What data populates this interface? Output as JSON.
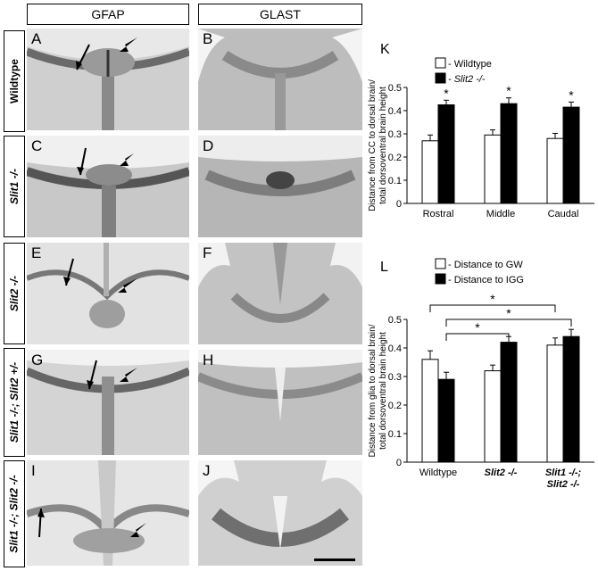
{
  "columns": [
    "GFAP",
    "GLAST"
  ],
  "rows": [
    {
      "label": "Wildtype",
      "left_letter": "A",
      "right_letter": "B"
    },
    {
      "label": "Slit1 -/-",
      "left_letter": "C",
      "right_letter": "D"
    },
    {
      "label": "Slit2 -/-",
      "left_letter": "E",
      "right_letter": "F"
    },
    {
      "label": "Slit1 -/-; Slit2 +/-",
      "left_letter": "G",
      "right_letter": "H"
    },
    {
      "label": "Slit1 -/-; Slit2 -/-",
      "left_letter": "I",
      "right_letter": "J"
    }
  ],
  "chart_data": [
    {
      "panel_letter": "K",
      "type": "bar",
      "categories": [
        "Rostral",
        "Middle",
        "Caudal"
      ],
      "series": [
        {
          "name": "- Wildtype",
          "values": [
            0.27,
            0.295,
            0.28
          ],
          "errors": [
            0.025,
            0.022,
            0.022
          ],
          "color": "#ffffff"
        },
        {
          "name": "- Slit2 -/-",
          "values": [
            0.425,
            0.43,
            0.415
          ],
          "errors": [
            0.02,
            0.025,
            0.022
          ],
          "color": "#000000"
        }
      ],
      "significance": [
        "*",
        "*",
        "*"
      ],
      "ylabel_lines": [
        "Distance from CC to dorsal brain/",
        "total dorsoventral brain height"
      ],
      "ylim": [
        0,
        0.5
      ],
      "yticks": [
        "0",
        "0.1",
        "0.2",
        "0.3",
        "0.4",
        "0.5"
      ]
    },
    {
      "panel_letter": "L",
      "type": "bar",
      "categories": [
        "Wildtype",
        "Slit2 -/-",
        "Slit1 -/-; Slit2 -/-"
      ],
      "series": [
        {
          "name": "- Distance to GW",
          "values": [
            0.36,
            0.32,
            0.41
          ],
          "errors": [
            0.03,
            0.02,
            0.025
          ],
          "color": "#ffffff"
        },
        {
          "name": "- Distance to IGG",
          "values": [
            0.29,
            0.42,
            0.44
          ],
          "errors": [
            0.025,
            0.02,
            0.025
          ],
          "color": "#000000"
        }
      ],
      "significance": [
        "*",
        "*",
        "*"
      ],
      "ylabel_lines": [
        "Distance from glia to dorsal brain/",
        "total dorsoventral brain height"
      ],
      "ylim": [
        0,
        0.5
      ],
      "yticks": [
        "0",
        "0.1",
        "0.2",
        "0.3",
        "0.4",
        "0.5"
      ]
    }
  ]
}
